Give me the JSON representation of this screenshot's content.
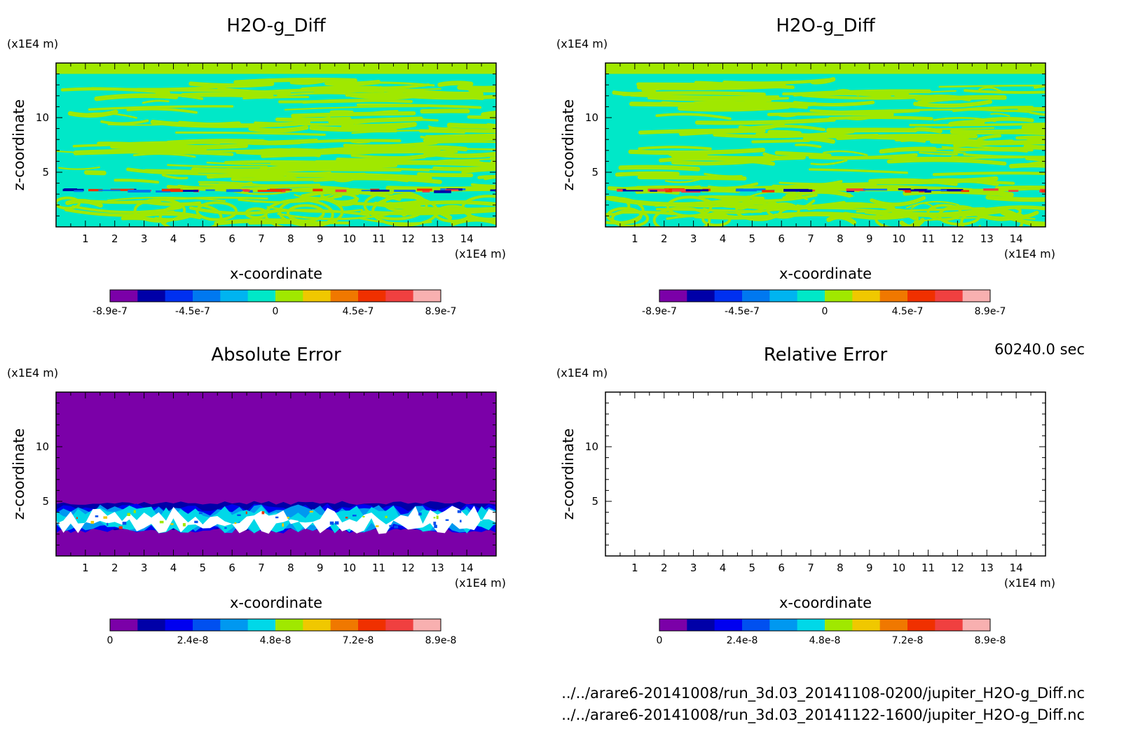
{
  "chart_data": [
    {
      "type": "heatmap",
      "title": "H2O-g_Diff",
      "xlabel": "x-coordinate",
      "ylabel": "z-coordinate",
      "xunit": "(x1E4 m)",
      "yunit": "(x1E4 m)",
      "xlim": [
        0,
        15
      ],
      "ylim": [
        0,
        15
      ],
      "xticks": [
        1,
        2,
        3,
        4,
        5,
        6,
        7,
        8,
        9,
        10,
        11,
        12,
        13,
        14
      ],
      "xticklabels": [
        "1",
        "2",
        "3",
        "4",
        "5",
        "6",
        "7",
        "8",
        "9",
        "10",
        "11",
        "12",
        "13",
        "14"
      ],
      "yticks": [
        5,
        10
      ],
      "yticklabels": [
        "5",
        "10"
      ],
      "colorbar": {
        "min": -8.9e-07,
        "max": 8.9e-07,
        "ticklabels": [
          "-8.9e-7",
          "-4.5e-7",
          "0",
          "4.5e-7",
          "8.9e-7"
        ],
        "colors": [
          "#7b00a8",
          "#0000a8",
          "#0030f0",
          "#0078f0",
          "#00b4f0",
          "#00e8c8",
          "#a0e800",
          "#f0c800",
          "#f07800",
          "#f03000",
          "#f04040",
          "#f8b0b0"
        ]
      },
      "field": {
        "kind": "diff",
        "seed": 11,
        "band_z": 3.4,
        "colors_main": [
          "#00e8c8",
          "#a0e800"
        ]
      }
    },
    {
      "type": "heatmap",
      "title": "H2O-g_Diff",
      "xlabel": "x-coordinate",
      "ylabel": "z-coordinate",
      "xunit": "(x1E4 m)",
      "yunit": "(x1E4 m)",
      "xlim": [
        0,
        15
      ],
      "ylim": [
        0,
        15
      ],
      "xticks": [
        1,
        2,
        3,
        4,
        5,
        6,
        7,
        8,
        9,
        10,
        11,
        12,
        13,
        14
      ],
      "xticklabels": [
        "1",
        "2",
        "3",
        "4",
        "5",
        "6",
        "7",
        "8",
        "9",
        "10",
        "11",
        "12",
        "13",
        "14"
      ],
      "yticks": [
        5,
        10
      ],
      "yticklabels": [
        "5",
        "10"
      ],
      "colorbar": {
        "min": -8.9e-07,
        "max": 8.9e-07,
        "ticklabels": [
          "-8.9e-7",
          "-4.5e-7",
          "0",
          "4.5e-7",
          "8.9e-7"
        ],
        "colors": [
          "#7b00a8",
          "#0000a8",
          "#0030f0",
          "#0078f0",
          "#00b4f0",
          "#00e8c8",
          "#a0e800",
          "#f0c800",
          "#f07800",
          "#f03000",
          "#f04040",
          "#f8b0b0"
        ]
      },
      "field": {
        "kind": "diff",
        "seed": 23,
        "band_z": 3.4,
        "colors_main": [
          "#00e8c8",
          "#a0e800"
        ]
      }
    },
    {
      "type": "heatmap",
      "title": "Absolute Error",
      "xlabel": "x-coordinate",
      "ylabel": "z-coordinate",
      "xunit": "(x1E4 m)",
      "yunit": "(x1E4 m)",
      "xlim": [
        0,
        15
      ],
      "ylim": [
        0,
        15
      ],
      "xticks": [
        1,
        2,
        3,
        4,
        5,
        6,
        7,
        8,
        9,
        10,
        11,
        12,
        13,
        14
      ],
      "xticklabels": [
        "1",
        "2",
        "3",
        "4",
        "5",
        "6",
        "7",
        "8",
        "9",
        "10",
        "11",
        "12",
        "13",
        "14"
      ],
      "yticks": [
        5,
        10
      ],
      "yticklabels": [
        "5",
        "10"
      ],
      "colorbar": {
        "min": 0,
        "max": 8.9e-08,
        "ticklabels": [
          "0",
          "2.4e-8",
          "4.8e-8",
          "7.2e-8",
          "8.9e-8"
        ],
        "colors": [
          "#7b00a8",
          "#0000a8",
          "#0000f0",
          "#0050f0",
          "#0098f0",
          "#00d8e8",
          "#a0e800",
          "#f0c800",
          "#f07800",
          "#f03000",
          "#f04040",
          "#f8b0b0"
        ]
      },
      "field": {
        "kind": "abs",
        "seed": 37,
        "band_z": 3.4,
        "background": "#7b00a8"
      }
    },
    {
      "type": "heatmap",
      "title": "Relative Error",
      "xlabel": "x-coordinate",
      "ylabel": "z-coordinate",
      "xunit": "(x1E4 m)",
      "yunit": "(x1E4 m)",
      "xlim": [
        0,
        15
      ],
      "ylim": [
        0,
        15
      ],
      "xticks": [
        1,
        2,
        3,
        4,
        5,
        6,
        7,
        8,
        9,
        10,
        11,
        12,
        13,
        14
      ],
      "xticklabels": [
        "1",
        "2",
        "3",
        "4",
        "5",
        "6",
        "7",
        "8",
        "9",
        "10",
        "11",
        "12",
        "13",
        "14"
      ],
      "yticks": [
        5,
        10
      ],
      "yticklabels": [
        "5",
        "10"
      ],
      "colorbar": {
        "min": 0,
        "max": 8.9e-08,
        "ticklabels": [
          "0",
          "2.4e-8",
          "4.8e-8",
          "7.2e-8",
          "8.9e-8"
        ],
        "colors": [
          "#7b00a8",
          "#0000a8",
          "#0000f0",
          "#0050f0",
          "#0098f0",
          "#00d8e8",
          "#a0e800",
          "#f0c800",
          "#f07800",
          "#f03000",
          "#f04040",
          "#f8b0b0"
        ]
      },
      "field": {
        "kind": "empty",
        "background": "#ffffff"
      }
    }
  ],
  "timestamp": "60240.0 sec",
  "file_paths": [
    "../../arare6-20141008/run_3d.03_20141108-0200/jupiter_H2O-g_Diff.nc",
    "../../arare6-20141008/run_3d.03_20141122-1600/jupiter_H2O-g_Diff.nc"
  ]
}
